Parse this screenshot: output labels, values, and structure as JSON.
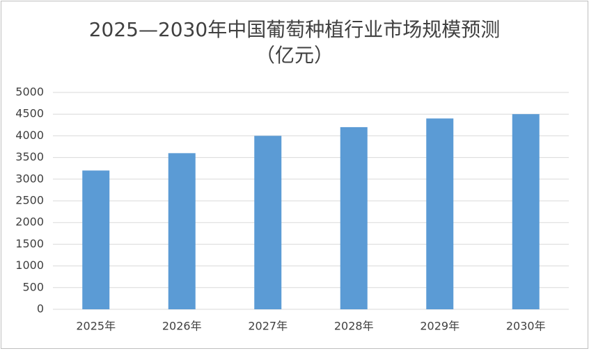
{
  "chart_data": {
    "type": "bar",
    "title": "2025—2030年中国葡萄种植行业市场规模预测",
    "subtitle": "（亿元）",
    "categories": [
      "2025年",
      "2026年",
      "2027年",
      "2028年",
      "2029年",
      "2030年"
    ],
    "values": [
      3200,
      3600,
      4000,
      4200,
      4400,
      4500
    ],
    "color": "#5b9bd5",
    "ylim": [
      0,
      5000
    ],
    "yticks": [
      0,
      500,
      1000,
      1500,
      2000,
      2500,
      3000,
      3500,
      4000,
      4500,
      5000
    ],
    "grid": true
  }
}
